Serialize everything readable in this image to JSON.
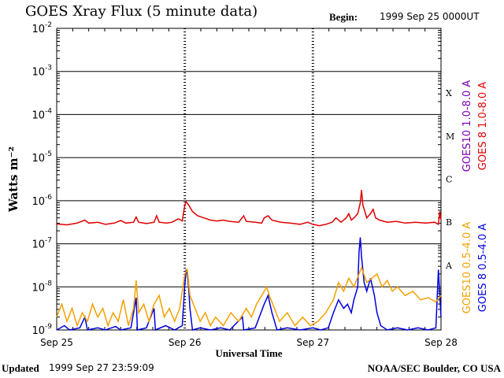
{
  "header": {
    "title": "GOES Xray Flux (5 minute data)",
    "begin_label": "Begin:",
    "begin_value": "1999 Sep 25 0000UT"
  },
  "footer": {
    "updated_label": "Updated",
    "updated_value": "1999 Sep 27 23:59:09",
    "credit": "NOAA/SEC Boulder, CO USA"
  },
  "chart_data": {
    "type": "line",
    "title": "GOES Xray Flux (5 minute data)",
    "xlabel": "Universal Time",
    "ylabel": "Watts m⁻²",
    "yscale": "log",
    "ylim": [
      1e-09,
      0.01
    ],
    "xlim": [
      0,
      3
    ],
    "x_unit": "days since 1999 Sep 25 0000UT",
    "x_ticks": [
      {
        "x": 0,
        "label": "Sep 25"
      },
      {
        "x": 1,
        "label": "Sep 26"
      },
      {
        "x": 2,
        "label": "Sep 27"
      },
      {
        "x": 3,
        "label": "Sep 28"
      }
    ],
    "y_ticks": [
      {
        "exp": -2,
        "label": "10",
        "sup": "-2"
      },
      {
        "exp": -3,
        "label": "10",
        "sup": "-3"
      },
      {
        "exp": -4,
        "label": "10",
        "sup": "-4"
      },
      {
        "exp": -5,
        "label": "10",
        "sup": "-5"
      },
      {
        "exp": -6,
        "label": "10",
        "sup": "-6"
      },
      {
        "exp": -7,
        "label": "10",
        "sup": "-7"
      },
      {
        "exp": -8,
        "label": "10",
        "sup": "-8"
      },
      {
        "exp": -9,
        "label": "10",
        "sup": "-9"
      }
    ],
    "flare_classes": [
      {
        "label": "X",
        "exp": -3.5
      },
      {
        "label": "M",
        "exp": -4.5
      },
      {
        "label": "C",
        "exp": -5.5
      },
      {
        "label": "B",
        "exp": -6.5
      },
      {
        "label": "A",
        "exp": -7.5
      }
    ],
    "grid": true,
    "legend_placement": "right, vertical",
    "legend_long": [
      {
        "name": "GOES10 1.0-8.0 A",
        "color": "#7b00b4"
      },
      {
        "name": "GOES 8 1.0-8.0 A",
        "color": "#e00000"
      }
    ],
    "legend_short": [
      {
        "name": "GOES10 0.5-4.0 A",
        "color": "#f5a000"
      },
      {
        "name": "GOES 8 0.5-4.0 A",
        "color": "#0000e0"
      }
    ],
    "series": [
      {
        "name": "GOES 8 1.0-8.0 A",
        "color": "#e00000",
        "points": [
          [
            0.0,
            -6.54
          ],
          [
            0.08,
            -6.56
          ],
          [
            0.16,
            -6.52
          ],
          [
            0.22,
            -6.45
          ],
          [
            0.25,
            -6.52
          ],
          [
            0.32,
            -6.5
          ],
          [
            0.38,
            -6.55
          ],
          [
            0.45,
            -6.52
          ],
          [
            0.5,
            -6.46
          ],
          [
            0.54,
            -6.52
          ],
          [
            0.6,
            -6.5
          ],
          [
            0.62,
            -6.38
          ],
          [
            0.64,
            -6.5
          ],
          [
            0.7,
            -6.53
          ],
          [
            0.76,
            -6.5
          ],
          [
            0.78,
            -6.35
          ],
          [
            0.8,
            -6.5
          ],
          [
            0.86,
            -6.52
          ],
          [
            0.9,
            -6.5
          ],
          [
            0.95,
            -6.42
          ],
          [
            0.98,
            -6.47
          ],
          [
            1.0,
            -6.1
          ],
          [
            1.01,
            -6.02
          ],
          [
            1.03,
            -6.1
          ],
          [
            1.06,
            -6.25
          ],
          [
            1.1,
            -6.35
          ],
          [
            1.15,
            -6.4
          ],
          [
            1.2,
            -6.45
          ],
          [
            1.25,
            -6.47
          ],
          [
            1.3,
            -6.45
          ],
          [
            1.35,
            -6.48
          ],
          [
            1.42,
            -6.5
          ],
          [
            1.46,
            -6.35
          ],
          [
            1.48,
            -6.48
          ],
          [
            1.55,
            -6.5
          ],
          [
            1.6,
            -6.52
          ],
          [
            1.62,
            -6.4
          ],
          [
            1.65,
            -6.35
          ],
          [
            1.68,
            -6.45
          ],
          [
            1.75,
            -6.5
          ],
          [
            1.82,
            -6.52
          ],
          [
            1.9,
            -6.55
          ],
          [
            1.96,
            -6.5
          ],
          [
            2.0,
            -6.55
          ],
          [
            2.05,
            -6.58
          ],
          [
            2.1,
            -6.55
          ],
          [
            2.15,
            -6.5
          ],
          [
            2.18,
            -6.4
          ],
          [
            2.22,
            -6.5
          ],
          [
            2.26,
            -6.4
          ],
          [
            2.28,
            -6.3
          ],
          [
            2.3,
            -6.45
          ],
          [
            2.32,
            -6.4
          ],
          [
            2.35,
            -6.3
          ],
          [
            2.37,
            -6.05
          ],
          [
            2.38,
            -5.75
          ],
          [
            2.39,
            -6.1
          ],
          [
            2.42,
            -6.4
          ],
          [
            2.45,
            -6.3
          ],
          [
            2.47,
            -6.2
          ],
          [
            2.49,
            -6.4
          ],
          [
            2.52,
            -6.45
          ],
          [
            2.58,
            -6.5
          ],
          [
            2.65,
            -6.48
          ],
          [
            2.72,
            -6.52
          ],
          [
            2.8,
            -6.5
          ],
          [
            2.88,
            -6.52
          ],
          [
            2.95,
            -6.5
          ],
          [
            2.98,
            -6.55
          ],
          [
            2.99,
            -6.25
          ],
          [
            3.0,
            -6.45
          ]
        ]
      },
      {
        "name": "GOES 8 0.5-4.0 A",
        "color": "#0000e0",
        "points": [
          [
            0.0,
            -9.0
          ],
          [
            0.06,
            -8.9
          ],
          [
            0.1,
            -9.0
          ],
          [
            0.18,
            -8.95
          ],
          [
            0.22,
            -8.7
          ],
          [
            0.24,
            -9.0
          ],
          [
            0.32,
            -8.95
          ],
          [
            0.38,
            -9.0
          ],
          [
            0.46,
            -8.92
          ],
          [
            0.5,
            -9.0
          ],
          [
            0.58,
            -8.95
          ],
          [
            0.62,
            -8.25
          ],
          [
            0.63,
            -9.0
          ],
          [
            0.7,
            -8.95
          ],
          [
            0.76,
            -8.5
          ],
          [
            0.77,
            -9.0
          ],
          [
            0.85,
            -8.9
          ],
          [
            0.92,
            -9.0
          ],
          [
            0.98,
            -8.9
          ],
          [
            1.0,
            -7.95
          ],
          [
            1.01,
            -7.6
          ],
          [
            1.02,
            -7.7
          ],
          [
            1.03,
            -8.0
          ],
          [
            1.04,
            -8.5
          ],
          [
            1.06,
            -9.0
          ],
          [
            1.12,
            -8.95
          ],
          [
            1.2,
            -9.0
          ],
          [
            1.28,
            -8.95
          ],
          [
            1.35,
            -9.0
          ],
          [
            1.45,
            -8.7
          ],
          [
            1.46,
            -9.0
          ],
          [
            1.55,
            -8.95
          ],
          [
            1.62,
            -8.4
          ],
          [
            1.65,
            -8.2
          ],
          [
            1.68,
            -8.6
          ],
          [
            1.72,
            -9.0
          ],
          [
            1.8,
            -8.95
          ],
          [
            1.9,
            -9.0
          ],
          [
            2.0,
            -8.95
          ],
          [
            2.06,
            -9.0
          ],
          [
            2.12,
            -8.95
          ],
          [
            2.16,
            -8.6
          ],
          [
            2.2,
            -8.3
          ],
          [
            2.24,
            -8.5
          ],
          [
            2.27,
            -8.4
          ],
          [
            2.3,
            -8.6
          ],
          [
            2.32,
            -8.3
          ],
          [
            2.35,
            -8.0
          ],
          [
            2.36,
            -7.2
          ],
          [
            2.37,
            -6.85
          ],
          [
            2.38,
            -7.3
          ],
          [
            2.4,
            -7.9
          ],
          [
            2.42,
            -8.1
          ],
          [
            2.45,
            -7.8
          ],
          [
            2.48,
            -8.2
          ],
          [
            2.5,
            -8.6
          ],
          [
            2.53,
            -8.9
          ],
          [
            2.58,
            -9.0
          ],
          [
            2.66,
            -8.95
          ],
          [
            2.74,
            -9.0
          ],
          [
            2.82,
            -8.95
          ],
          [
            2.9,
            -9.0
          ],
          [
            2.96,
            -8.95
          ],
          [
            2.98,
            -7.6
          ],
          [
            3.0,
            -8.7
          ]
        ]
      },
      {
        "name": "GOES10 0.5-4.0 A",
        "color": "#f5a000",
        "points": [
          [
            0.0,
            -8.7
          ],
          [
            0.04,
            -8.4
          ],
          [
            0.08,
            -8.8
          ],
          [
            0.12,
            -8.5
          ],
          [
            0.16,
            -8.9
          ],
          [
            0.2,
            -8.6
          ],
          [
            0.24,
            -8.8
          ],
          [
            0.28,
            -8.4
          ],
          [
            0.32,
            -8.7
          ],
          [
            0.36,
            -8.5
          ],
          [
            0.4,
            -8.9
          ],
          [
            0.44,
            -8.6
          ],
          [
            0.48,
            -8.8
          ],
          [
            0.52,
            -8.3
          ],
          [
            0.56,
            -8.9
          ],
          [
            0.6,
            -8.5
          ],
          [
            0.62,
            -7.85
          ],
          [
            0.64,
            -8.6
          ],
          [
            0.68,
            -8.4
          ],
          [
            0.72,
            -8.8
          ],
          [
            0.76,
            -8.4
          ],
          [
            0.8,
            -8.2
          ],
          [
            0.84,
            -8.7
          ],
          [
            0.88,
            -8.5
          ],
          [
            0.92,
            -8.8
          ],
          [
            0.96,
            -8.5
          ],
          [
            1.0,
            -7.7
          ],
          [
            1.02,
            -7.6
          ],
          [
            1.04,
            -8.2
          ],
          [
            1.08,
            -8.5
          ],
          [
            1.12,
            -8.8
          ],
          [
            1.16,
            -8.6
          ],
          [
            1.2,
            -8.9
          ],
          [
            1.24,
            -8.7
          ],
          [
            1.3,
            -8.9
          ],
          [
            1.36,
            -8.6
          ],
          [
            1.42,
            -8.8
          ],
          [
            1.48,
            -8.5
          ],
          [
            1.52,
            -8.7
          ],
          [
            1.56,
            -8.4
          ],
          [
            1.6,
            -8.2
          ],
          [
            1.64,
            -8.0
          ],
          [
            1.66,
            -8.2
          ],
          [
            1.7,
            -8.5
          ],
          [
            1.74,
            -8.8
          ],
          [
            1.8,
            -8.6
          ],
          [
            1.86,
            -8.9
          ],
          [
            1.92,
            -8.7
          ],
          [
            1.98,
            -8.9
          ],
          [
            2.04,
            -8.8
          ],
          [
            2.1,
            -8.6
          ],
          [
            2.16,
            -8.3
          ],
          [
            2.2,
            -7.9
          ],
          [
            2.24,
            -8.1
          ],
          [
            2.28,
            -7.8
          ],
          [
            2.32,
            -8.0
          ],
          [
            2.36,
            -7.7
          ],
          [
            2.38,
            -7.55
          ],
          [
            2.42,
            -7.9
          ],
          [
            2.46,
            -7.8
          ],
          [
            2.5,
            -7.7
          ],
          [
            2.54,
            -8.0
          ],
          [
            2.58,
            -7.85
          ],
          [
            2.62,
            -8.1
          ],
          [
            2.66,
            -8.0
          ],
          [
            2.72,
            -8.2
          ],
          [
            2.78,
            -8.1
          ],
          [
            2.84,
            -8.3
          ],
          [
            2.9,
            -8.25
          ],
          [
            2.96,
            -8.35
          ],
          [
            3.0,
            -8.2
          ]
        ]
      }
    ]
  }
}
